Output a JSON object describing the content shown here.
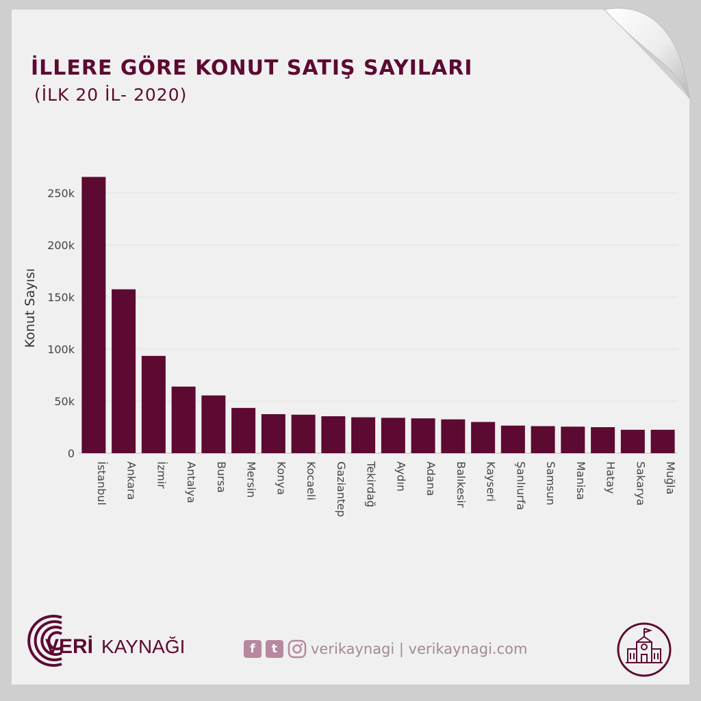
{
  "header": {
    "title": "İLLERE GÖRE KONUT SATIŞ SAYILARI",
    "subtitle": "(İLK 20 İL- 2020)"
  },
  "chart_data": {
    "type": "bar",
    "title": "İLLERE GÖRE KONUT SATIŞ SAYILARI",
    "subtitle": "(İLK 20 İL- 2020)",
    "ylabel": "Konut Sayısı",
    "xlabel": "",
    "ylim": [
      0,
      275000
    ],
    "yticks": [
      0,
      50000,
      100000,
      150000,
      200000,
      250000
    ],
    "ytick_labels": [
      "0",
      "50k",
      "100k",
      "150k",
      "200k",
      "250k"
    ],
    "grid": true,
    "color": "#5c0a32",
    "categories": [
      "İstanbul",
      "Ankara",
      "İzmir",
      "Antalya",
      "Bursa",
      "Mersin",
      "Konya",
      "Kocaeli",
      "Gaziantep",
      "Tekirdağ",
      "Aydın",
      "Adana",
      "Balıkesir",
      "Kayseri",
      "Şanlıurfa",
      "Samsun",
      "Manisa",
      "Hatay",
      "Sakarya",
      "Muğla"
    ],
    "values": [
      265500,
      157500,
      93500,
      64000,
      55500,
      43500,
      37500,
      37000,
      35500,
      34500,
      34000,
      33500,
      32500,
      30000,
      26500,
      26000,
      25500,
      25000,
      22500,
      22500
    ]
  },
  "footer": {
    "brand_veri": "VERİ",
    "brand_kaynagi": "KAYNAĞI",
    "facebook_glyph": "f",
    "twitter_glyph": "t",
    "handle": "verikaynagi | verikaynagi.com",
    "icons": [
      "facebook-icon",
      "twitter-icon",
      "instagram-icon",
      "school-building-icon"
    ]
  }
}
